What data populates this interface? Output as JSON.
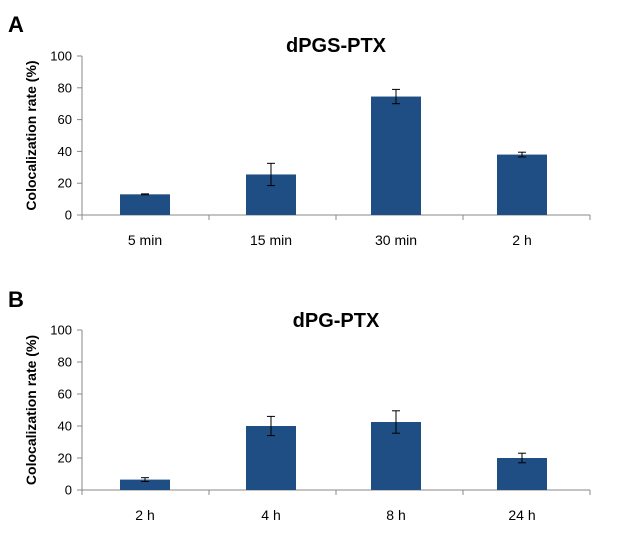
{
  "chart_data": [
    {
      "panel_label": "A",
      "type": "bar",
      "title": "dPGS-PTX",
      "xlabel": "",
      "ylabel": "Colocalization rate (%)",
      "categories": [
        "5 min",
        "15 min",
        "30 min",
        "2 h"
      ],
      "values": [
        13,
        25.5,
        74.5,
        38
      ],
      "errors": [
        0.3,
        7,
        4.5,
        1.5
      ],
      "ylim": [
        0,
        100
      ],
      "yticks": [
        0,
        20,
        40,
        60,
        80,
        100
      ],
      "bar_color": "#1f4e85",
      "grid": false,
      "legend": "none"
    },
    {
      "panel_label": "B",
      "type": "bar",
      "title": "dPG-PTX",
      "xlabel": "",
      "ylabel": "Colocalization rate (%)",
      "categories": [
        "2 h",
        "4 h",
        "8 h",
        "24 h"
      ],
      "values": [
        6.5,
        40,
        42.5,
        20
      ],
      "errors": [
        1.2,
        6,
        7,
        3
      ],
      "ylim": [
        0,
        100
      ],
      "yticks": [
        0,
        20,
        40,
        60,
        80,
        100
      ],
      "bar_color": "#1f4e85",
      "grid": false,
      "legend": "none"
    }
  ]
}
